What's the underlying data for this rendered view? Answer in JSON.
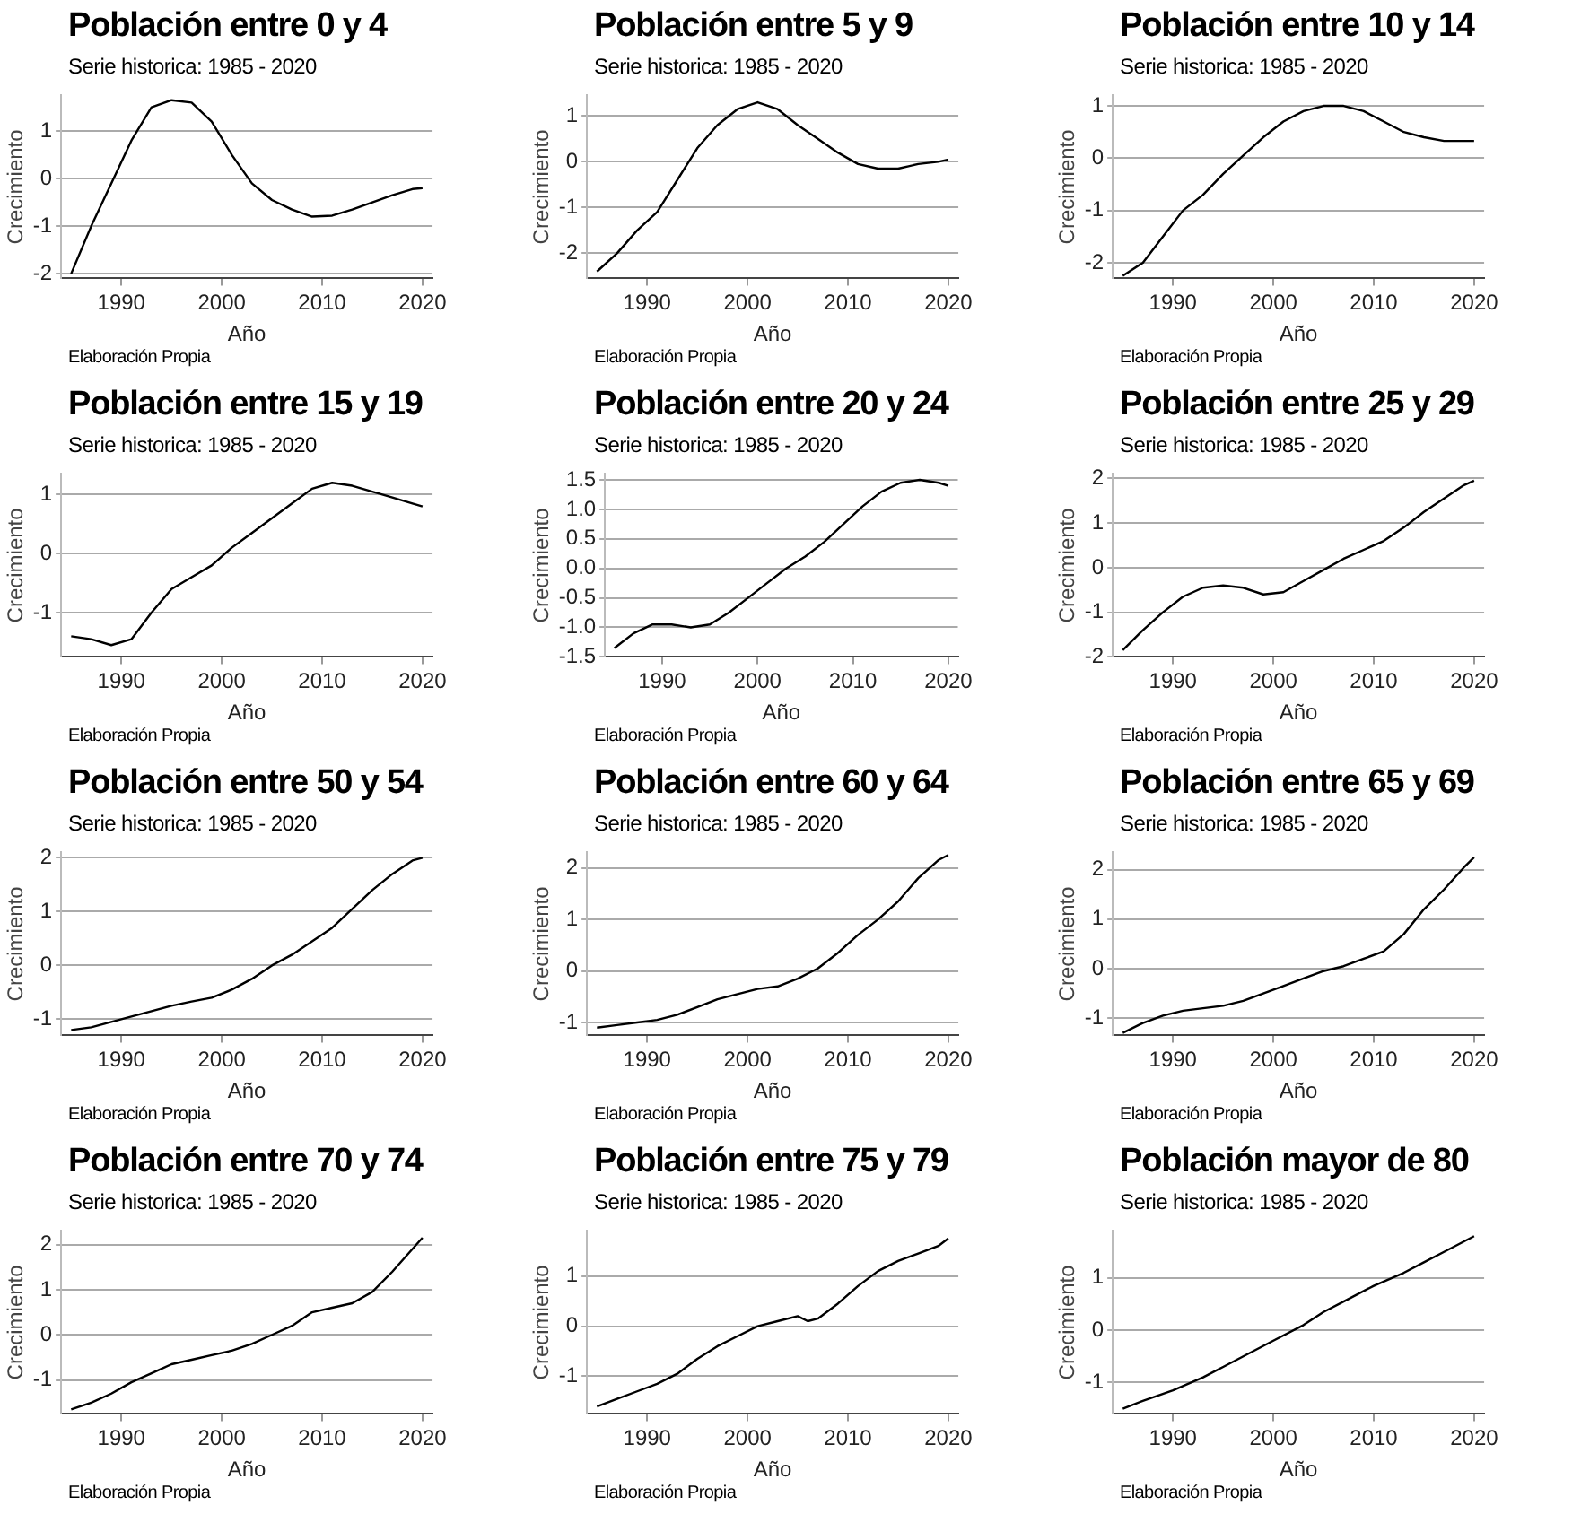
{
  "chart_data": [
    {
      "type": "line",
      "title": "Población entre 0 y 4",
      "subtitle": "Serie historica: 1985 - 2020",
      "xlabel": "Año",
      "ylabel": "Crecimiento",
      "annotations": [
        "Elaboración Propia"
      ],
      "color": "#000000",
      "grid": "y",
      "x": [
        1985,
        1987,
        1989,
        1991,
        1993,
        1995,
        1997,
        1999,
        2001,
        2003,
        2005,
        2007,
        2009,
        2011,
        2013,
        2015,
        2017,
        2019,
        2020
      ],
      "values": [
        -2.0,
        -1.0,
        -0.1,
        0.8,
        1.5,
        1.65,
        1.6,
        1.2,
        0.5,
        -0.1,
        -0.45,
        -0.65,
        -0.8,
        -0.78,
        -0.65,
        -0.5,
        -0.35,
        -0.22,
        -0.2
      ],
      "xlim": [
        1984,
        2021
      ],
      "xticks": [
        1990,
        2000,
        2010,
        2020
      ],
      "ylim": [
        -2.1,
        1.75
      ],
      "yticks": [
        -2,
        -1,
        0,
        1
      ]
    },
    {
      "type": "line",
      "title": "Población entre 5 y 9",
      "subtitle": "Serie historica: 1985 - 2020",
      "xlabel": "Año",
      "ylabel": "Crecimiento",
      "annotations": [
        "Elaboración Propia"
      ],
      "color": "#000000",
      "grid": "y",
      "x": [
        1985,
        1987,
        1989,
        1991,
        1993,
        1995,
        1997,
        1999,
        2001,
        2003,
        2005,
        2007,
        2009,
        2011,
        2013,
        2015,
        2017,
        2019,
        2020
      ],
      "values": [
        -2.4,
        -2.0,
        -1.5,
        -1.1,
        -0.4,
        0.3,
        0.8,
        1.15,
        1.3,
        1.15,
        0.8,
        0.5,
        0.2,
        -0.05,
        -0.15,
        -0.15,
        -0.05,
        0.0,
        0.05
      ],
      "xlim": [
        1984,
        2021
      ],
      "xticks": [
        1990,
        2000,
        2010,
        2020
      ],
      "ylim": [
        -2.55,
        1.45
      ],
      "yticks": [
        -2,
        -1,
        0,
        1
      ]
    },
    {
      "type": "line",
      "title": "Población entre 10 y 14",
      "subtitle": "Serie historica: 1985 - 2020",
      "xlabel": "Año",
      "ylabel": "Crecimiento",
      "annotations": [
        "Elaboración Propia"
      ],
      "color": "#000000",
      "grid": "y",
      "x": [
        1985,
        1987,
        1989,
        1991,
        1993,
        1995,
        1997,
        1999,
        2001,
        2003,
        2005,
        2007,
        2009,
        2011,
        2013,
        2015,
        2017,
        2019,
        2020
      ],
      "values": [
        -2.25,
        -2.0,
        -1.5,
        -1.0,
        -0.7,
        -0.3,
        0.05,
        0.4,
        0.7,
        0.9,
        1.0,
        1.0,
        0.9,
        0.7,
        0.5,
        0.4,
        0.33,
        0.33,
        0.33
      ],
      "xlim": [
        1984,
        2021
      ],
      "xticks": [
        1990,
        2000,
        2010,
        2020
      ],
      "ylim": [
        -2.3,
        1.2
      ],
      "yticks": [
        -2,
        -1,
        0,
        1
      ]
    },
    {
      "type": "line",
      "title": "Población entre 15 y 19",
      "subtitle": "Serie historica: 1985 - 2020",
      "xlabel": "Año",
      "ylabel": "Crecimiento",
      "annotations": [
        "Elaboración Propia"
      ],
      "color": "#000000",
      "grid": "y",
      "x": [
        1985,
        1987,
        1989,
        1991,
        1993,
        1995,
        1997,
        1999,
        2001,
        2003,
        2005,
        2007,
        2009,
        2011,
        2013,
        2015,
        2017,
        2019,
        2020
      ],
      "values": [
        -1.4,
        -1.45,
        -1.55,
        -1.45,
        -1.0,
        -0.6,
        -0.4,
        -0.2,
        0.1,
        0.35,
        0.6,
        0.85,
        1.1,
        1.2,
        1.15,
        1.05,
        0.95,
        0.85,
        0.8
      ],
      "xlim": [
        1984,
        2021
      ],
      "xticks": [
        1990,
        2000,
        2010,
        2020
      ],
      "ylim": [
        -1.75,
        1.35
      ],
      "yticks": [
        -1,
        0,
        1
      ]
    },
    {
      "type": "line",
      "title": "Población entre 20 y 24",
      "subtitle": "Serie historica: 1985 - 2020",
      "xlabel": "Año",
      "ylabel": "Crecimiento",
      "annotations": [
        "Elaboración Propia"
      ],
      "color": "#000000",
      "grid": "y",
      "x": [
        1985,
        1987,
        1989,
        1991,
        1993,
        1995,
        1997,
        1999,
        2001,
        2003,
        2005,
        2007,
        2009,
        2011,
        2013,
        2015,
        2017,
        2019,
        2020
      ],
      "values": [
        -1.35,
        -1.1,
        -0.95,
        -0.95,
        -1.0,
        -0.95,
        -0.75,
        -0.5,
        -0.25,
        0.0,
        0.2,
        0.45,
        0.75,
        1.05,
        1.3,
        1.45,
        1.5,
        1.45,
        1.4
      ],
      "xlim": [
        1984,
        2021
      ],
      "xticks": [
        1990,
        2000,
        2010,
        2020
      ],
      "ylim": [
        -1.5,
        1.6
      ],
      "yticks": [
        {
          "value": -1.5,
          "label": "-1.5"
        },
        {
          "value": -1,
          "label": "-1.0"
        },
        {
          "value": -0.5,
          "label": "-0.5"
        },
        {
          "value": 0,
          "label": "0.0"
        },
        {
          "value": 0.5,
          "label": "0.5"
        },
        {
          "value": 1,
          "label": "1.0"
        },
        {
          "value": 1.5,
          "label": "1.5"
        }
      ]
    },
    {
      "type": "line",
      "title": "Población entre 25 y 29",
      "subtitle": "Serie historica: 1985 - 2020",
      "xlabel": "Año",
      "ylabel": "Crecimiento",
      "annotations": [
        "Elaboración Propia"
      ],
      "color": "#000000",
      "grid": "y",
      "x": [
        1985,
        1987,
        1989,
        1991,
        1993,
        1995,
        1997,
        1999,
        2001,
        2003,
        2005,
        2007,
        2009,
        2011,
        2013,
        2015,
        2017,
        2019,
        2020
      ],
      "values": [
        -1.85,
        -1.4,
        -1.0,
        -0.65,
        -0.45,
        -0.4,
        -0.45,
        -0.6,
        -0.55,
        -0.3,
        -0.05,
        0.2,
        0.4,
        0.6,
        0.9,
        1.25,
        1.55,
        1.85,
        1.95
      ],
      "xlim": [
        1984,
        2021
      ],
      "xticks": [
        1990,
        2000,
        2010,
        2020
      ],
      "ylim": [
        -2,
        2.1
      ],
      "yticks": [
        -2,
        -1,
        0,
        1,
        2
      ]
    },
    {
      "type": "line",
      "title": "Población entre 50 y 54",
      "subtitle": "Serie historica: 1985 - 2020",
      "xlabel": "Año",
      "ylabel": "Crecimiento",
      "annotations": [
        "Elaboración Propia"
      ],
      "color": "#000000",
      "grid": "y",
      "x": [
        1985,
        1987,
        1989,
        1991,
        1993,
        1995,
        1997,
        1999,
        2001,
        2003,
        2005,
        2007,
        2009,
        2011,
        2013,
        2015,
        2017,
        2019,
        2020
      ],
      "values": [
        -1.2,
        -1.15,
        -1.05,
        -0.95,
        -0.85,
        -0.75,
        -0.67,
        -0.6,
        -0.45,
        -0.25,
        0.0,
        0.2,
        0.45,
        0.7,
        1.05,
        1.4,
        1.7,
        1.95,
        2.0
      ],
      "xlim": [
        1984,
        2021
      ],
      "xticks": [
        1990,
        2000,
        2010,
        2020
      ],
      "ylim": [
        -1.3,
        2.1
      ],
      "yticks": [
        -1,
        0,
        1,
        2
      ]
    },
    {
      "type": "line",
      "title": "Población entre 60 y 64",
      "subtitle": "Serie historica: 1985 - 2020",
      "xlabel": "Año",
      "ylabel": "Crecimiento",
      "annotations": [
        "Elaboración Propia"
      ],
      "color": "#000000",
      "grid": "y",
      "x": [
        1985,
        1987,
        1989,
        1991,
        1993,
        1995,
        1997,
        1999,
        2001,
        2003,
        2005,
        2007,
        2009,
        2011,
        2013,
        2015,
        2017,
        2019,
        2020
      ],
      "values": [
        -1.1,
        -1.05,
        -1.0,
        -0.95,
        -0.85,
        -0.7,
        -0.55,
        -0.45,
        -0.35,
        -0.3,
        -0.15,
        0.05,
        0.35,
        0.7,
        1.0,
        1.35,
        1.8,
        2.15,
        2.25
      ],
      "xlim": [
        1984,
        2021
      ],
      "xticks": [
        1990,
        2000,
        2010,
        2020
      ],
      "ylim": [
        -1.25,
        2.3
      ],
      "yticks": [
        -1,
        0,
        1,
        2
      ]
    },
    {
      "type": "line",
      "title": "Población entre 65 y 69",
      "subtitle": "Serie historica: 1985 - 2020",
      "xlabel": "Año",
      "ylabel": "Crecimiento",
      "annotations": [
        "Elaboración Propia"
      ],
      "color": "#000000",
      "grid": "y",
      "x": [
        1985,
        1987,
        1989,
        1991,
        1993,
        1995,
        1997,
        1999,
        2001,
        2003,
        2005,
        2007,
        2009,
        2011,
        2013,
        2015,
        2017,
        2019,
        2020
      ],
      "values": [
        -1.3,
        -1.1,
        -0.95,
        -0.85,
        -0.8,
        -0.75,
        -0.65,
        -0.5,
        -0.35,
        -0.2,
        -0.05,
        0.05,
        0.2,
        0.35,
        0.7,
        1.2,
        1.6,
        2.05,
        2.25
      ],
      "xlim": [
        1984,
        2021
      ],
      "xticks": [
        1990,
        2000,
        2010,
        2020
      ],
      "ylim": [
        -1.35,
        2.35
      ],
      "yticks": [
        -1,
        0,
        1,
        2
      ]
    },
    {
      "type": "line",
      "title": "Población entre 70 y 74",
      "subtitle": "Serie historica: 1985 - 2020",
      "xlabel": "Año",
      "ylabel": "Crecimiento",
      "annotations": [
        "Elaboración Propia"
      ],
      "color": "#000000",
      "grid": "y",
      "x": [
        1985,
        1987,
        1989,
        1991,
        1993,
        1995,
        1997,
        1999,
        2001,
        2003,
        2005,
        2007,
        2009,
        2011,
        2013,
        2015,
        2017,
        2019,
        2020
      ],
      "values": [
        -1.65,
        -1.5,
        -1.3,
        -1.05,
        -0.85,
        -0.65,
        -0.55,
        -0.45,
        -0.35,
        -0.2,
        0.0,
        0.2,
        0.5,
        0.6,
        0.7,
        0.95,
        1.4,
        1.9,
        2.15
      ],
      "xlim": [
        1984,
        2021
      ],
      "xticks": [
        1990,
        2000,
        2010,
        2020
      ],
      "ylim": [
        -1.75,
        2.3
      ],
      "yticks": [
        -1,
        0,
        1,
        2
      ]
    },
    {
      "type": "line",
      "title": "Población entre 75 y 79",
      "subtitle": "Serie historica: 1985 - 2020",
      "xlabel": "Año",
      "ylabel": "Crecimiento",
      "annotations": [
        "Elaboración Propia"
      ],
      "color": "#000000",
      "grid": "y",
      "x": [
        1985,
        1987,
        1989,
        1991,
        1993,
        1995,
        1997,
        1999,
        2001,
        2003,
        2005,
        2006,
        2007,
        2009,
        2011,
        2013,
        2015,
        2017,
        2019,
        2020
      ],
      "values": [
        -1.6,
        -1.45,
        -1.3,
        -1.15,
        -0.95,
        -0.65,
        -0.4,
        -0.2,
        0.0,
        0.1,
        0.2,
        0.1,
        0.15,
        0.45,
        0.8,
        1.1,
        1.3,
        1.45,
        1.6,
        1.75
      ],
      "xlim": [
        1984,
        2021
      ],
      "xticks": [
        1990,
        2000,
        2010,
        2020
      ],
      "ylim": [
        -1.75,
        1.9
      ],
      "yticks": [
        -1,
        0,
        1
      ]
    },
    {
      "type": "line",
      "title": "Población mayor de 80",
      "subtitle": "Serie historica: 1985 - 2020",
      "xlabel": "Año",
      "ylabel": "Crecimiento",
      "annotations": [
        "Elaboración Propia"
      ],
      "color": "#000000",
      "grid": "y",
      "x": [
        1985,
        1987,
        1990,
        1993,
        1995,
        1997,
        2000,
        2003,
        2005,
        2007,
        2010,
        2013,
        2015,
        2017,
        2020
      ],
      "values": [
        -1.5,
        -1.35,
        -1.15,
        -0.9,
        -0.7,
        -0.5,
        -0.2,
        0.1,
        0.35,
        0.55,
        0.85,
        1.1,
        1.3,
        1.5,
        1.8
      ],
      "xlim": [
        1984,
        2021
      ],
      "xticks": [
        1990,
        2000,
        2010,
        2020
      ],
      "ylim": [
        -1.6,
        1.9
      ],
      "yticks": [
        -1,
        0,
        1
      ]
    }
  ]
}
